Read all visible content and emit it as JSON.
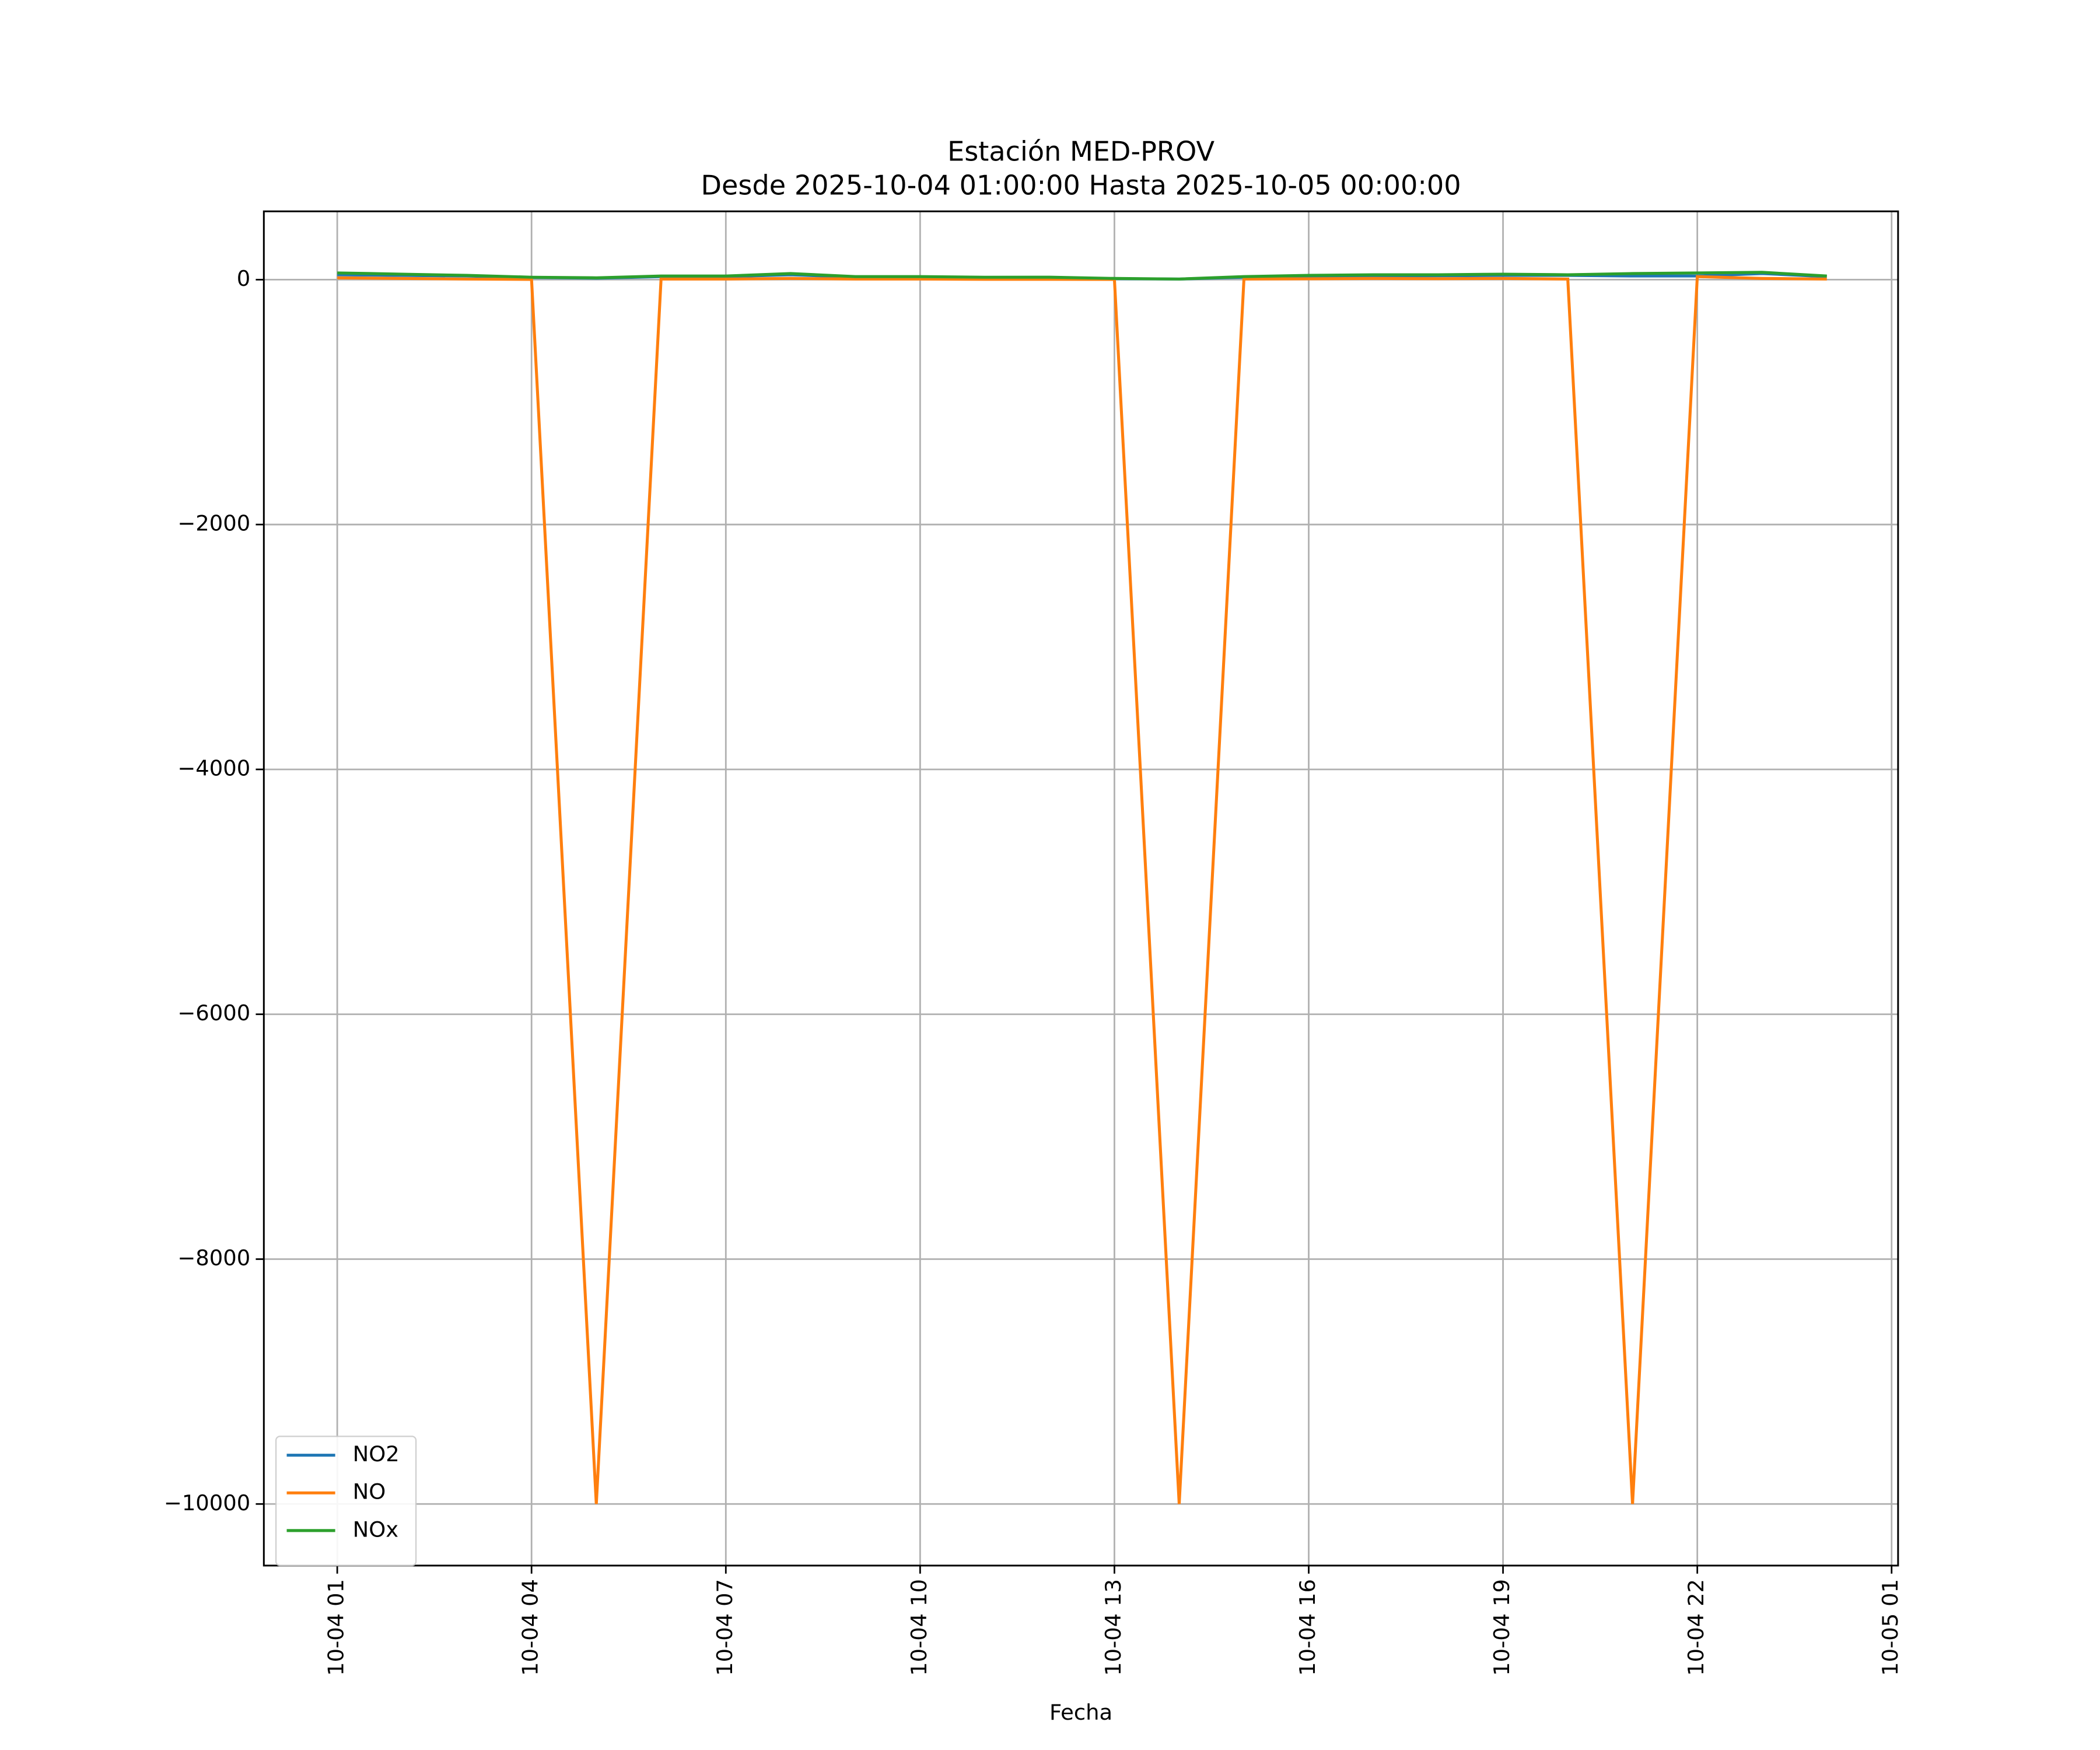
{
  "chart_data": {
    "type": "line",
    "title": "Estación MED-PROV",
    "subtitle": "Desde 2025-10-04 01:00:00 Hasta 2025-10-05 00:00:00",
    "xlabel": "Fecha",
    "x": [
      "10-04 01",
      "10-04 02",
      "10-04 03",
      "10-04 04",
      "10-04 05",
      "10-04 06",
      "10-04 07",
      "10-04 08",
      "10-04 09",
      "10-04 10",
      "10-04 11",
      "10-04 12",
      "10-04 13",
      "10-04 14",
      "10-04 15",
      "10-04 16",
      "10-04 17",
      "10-04 18",
      "10-04 19",
      "10-04 20",
      "10-04 21",
      "10-04 22",
      "10-04 23",
      "10-05 00"
    ],
    "series": [
      {
        "name": "NO2",
        "color": "#1f77b4",
        "values": [
          40,
          35,
          30,
          18,
          12,
          25,
          25,
          40,
          20,
          20,
          18,
          15,
          8,
          5,
          20,
          28,
          30,
          32,
          35,
          35,
          30,
          30,
          50,
          25
        ]
      },
      {
        "name": "NO",
        "color": "#ff7f0e",
        "values": [
          15,
          10,
          5,
          2,
          -10000,
          5,
          5,
          10,
          5,
          5,
          3,
          3,
          2,
          -10000,
          5,
          7,
          10,
          8,
          10,
          5,
          -10000,
          25,
          10,
          5
        ]
      },
      {
        "name": "NOx",
        "color": "#2ca02c",
        "values": [
          55,
          45,
          35,
          20,
          15,
          30,
          30,
          50,
          25,
          25,
          20,
          20,
          10,
          5,
          25,
          35,
          40,
          40,
          45,
          40,
          50,
          55,
          60,
          30
        ]
      }
    ],
    "xlim": [
      "10-03 23:52",
      "10-05 01:06"
    ],
    "xticks": [
      "10-04 01",
      "10-04 04",
      "10-04 07",
      "10-04 10",
      "10-04 13",
      "10-04 16",
      "10-04 19",
      "10-04 22",
      "10-05 01"
    ],
    "ylim": [
      -10503,
      558
    ],
    "yticks": [
      0,
      {
        "value": -2000,
        "label": "−2000"
      },
      {
        "value": -4000,
        "label": "−4000"
      },
      {
        "value": -6000,
        "label": "−6000"
      },
      {
        "value": -8000,
        "label": "−8000"
      },
      {
        "value": -10000,
        "label": "−10000"
      }
    ],
    "grid": true,
    "legend": "lower left"
  }
}
